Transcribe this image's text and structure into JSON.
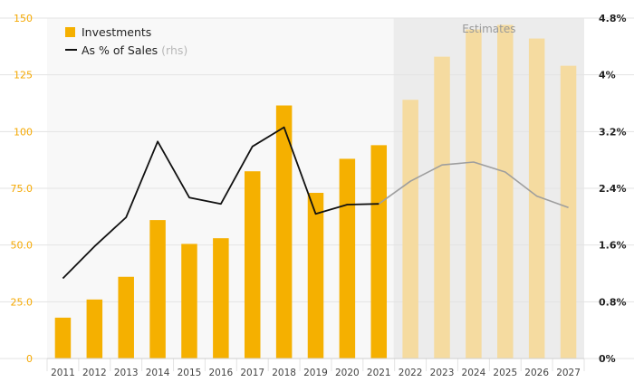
{
  "chart_data": {
    "type": "bar",
    "categories": [
      "2011",
      "2012",
      "2013",
      "2014",
      "2015",
      "2016",
      "2017",
      "2018",
      "2019",
      "2020",
      "2021",
      "2022",
      "2023",
      "2024",
      "2025",
      "2026",
      "2027"
    ],
    "estimate_start_index": 11,
    "series": [
      {
        "name": "Investments",
        "type": "bar",
        "axis": "left",
        "values": [
          18,
          26,
          36,
          61,
          50.5,
          53,
          82.5,
          111.5,
          73,
          88,
          94,
          114,
          133,
          145,
          147,
          141,
          129
        ]
      },
      {
        "name": "As % of Sales",
        "name_suffix": "(rhs)",
        "type": "line",
        "axis": "right",
        "values": [
          1.13,
          1.58,
          1.99,
          3.06,
          2.27,
          2.18,
          2.99,
          3.26,
          2.04,
          2.17,
          2.18,
          2.5,
          2.73,
          2.77,
          2.63,
          2.29,
          2.13
        ]
      }
    ],
    "left_axis": {
      "ylim": [
        0,
        150
      ],
      "ticks": [
        0,
        25,
        50,
        75,
        100,
        125,
        150
      ],
      "tick_labels": [
        "0",
        "25.0",
        "50.0",
        "75.0",
        "100",
        "125",
        "150"
      ]
    },
    "right_axis": {
      "ylim": [
        0,
        4.8
      ],
      "ticks": [
        0,
        0.8,
        1.6,
        2.4,
        3.2,
        4,
        4.8
      ],
      "tick_labels": [
        "0%",
        "0.8%",
        "1.6%",
        "2.4%",
        "3.2%",
        "4%",
        "4.8%"
      ]
    },
    "estimates_label": "Estimates",
    "legend": {
      "position": "top-left"
    },
    "colors": {
      "bar_actual": "#f5b000",
      "bar_estimate": "#f5dba0",
      "line_actual": "#111111",
      "line_estimate": "#9e9e9e",
      "estimate_band": "#ececec",
      "plot_bg": "#f8f8f8",
      "grid": "#e3e3e3"
    }
  }
}
